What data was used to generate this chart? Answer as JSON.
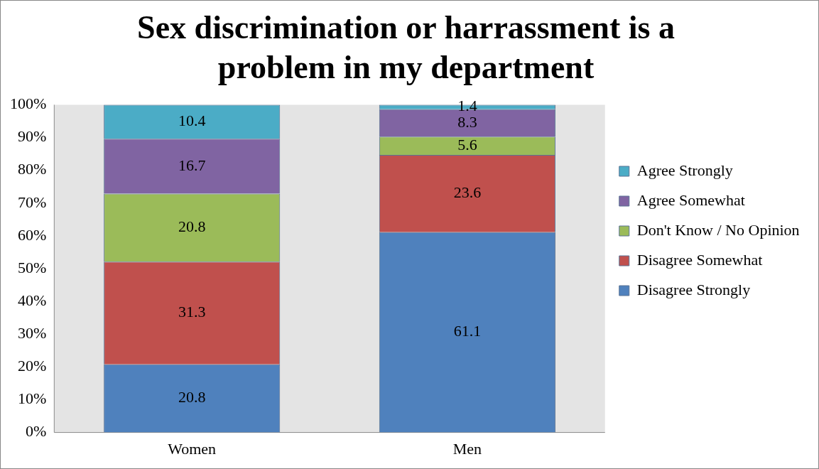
{
  "chart_data": {
    "type": "bar",
    "title": "Sex discrimination or harrassment is a problem in my department",
    "categories": [
      "Women",
      "Men"
    ],
    "stacked": true,
    "data_labels": true,
    "legend": "right",
    "grid": false,
    "ylim": [
      0,
      100
    ],
    "yticks": [
      {
        "value": 0,
        "label": "0%"
      },
      {
        "value": 10,
        "label": "10%"
      },
      {
        "value": 20,
        "label": "20%"
      },
      {
        "value": 30,
        "label": "30%"
      },
      {
        "value": 40,
        "label": "40%"
      },
      {
        "value": 50,
        "label": "50%"
      },
      {
        "value": 60,
        "label": "60%"
      },
      {
        "value": 70,
        "label": "70%"
      },
      {
        "value": 80,
        "label": "80%"
      },
      {
        "value": 90,
        "label": "90%"
      },
      {
        "value": 100,
        "label": "100%"
      }
    ],
    "series": [
      {
        "name": "Disagree Strongly",
        "color": "#4f81bd",
        "values": [
          20.8,
          61.1
        ]
      },
      {
        "name": "Disagree Somewhat",
        "color": "#c0504d",
        "values": [
          31.3,
          23.6
        ]
      },
      {
        "name": "Don't Know / No Opinion",
        "color": "#9bbb59",
        "values": [
          20.8,
          5.6
        ]
      },
      {
        "name": "Agree Somewhat",
        "color": "#8064a2",
        "values": [
          16.7,
          8.3
        ]
      },
      {
        "name": "Agree Strongly",
        "color": "#4bacc6",
        "values": [
          10.4,
          1.4
        ]
      }
    ]
  }
}
